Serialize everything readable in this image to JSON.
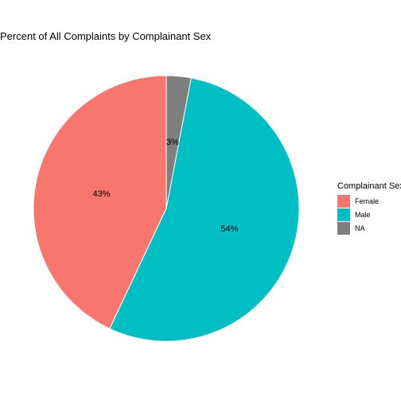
{
  "chart_data": {
    "type": "pie",
    "title": "Percent of All Complaints by Complainant Sex",
    "legend_title": "Complainant Sex",
    "legend_position": "right",
    "start": "top",
    "direction": "counter-clockwise",
    "slices": [
      {
        "name": "Female",
        "value": 43,
        "label": "43%",
        "color": "#F8766D"
      },
      {
        "name": "Male",
        "value": 54,
        "label": "54%",
        "color": "#00BFC4"
      },
      {
        "name": "NA",
        "value": 3,
        "label": "3%",
        "color": "#7F7F7F"
      }
    ]
  }
}
